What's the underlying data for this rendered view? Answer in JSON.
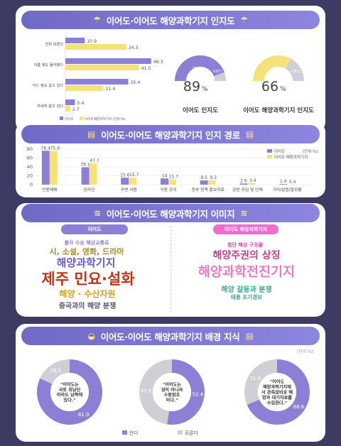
{
  "sections": {
    "s1_title": "이어도·이어도 해양과학기지 인지도",
    "s2_title": "이어도·이어도 해양과학기지 인지 경로",
    "s3_title": "이어도·이어도 해양과학기지 이미지",
    "s4_title": "이어도·이어도 해양과학기지 배경 지식"
  },
  "colors": {
    "ieodo": "#8b80d6",
    "station": "#f6e27a",
    "gray": "#cfcfd6"
  },
  "awareness": {
    "categories": [
      "전혀 모른다",
      "이름 정도 들어봤다",
      "어느 정도 알고 있다",
      "자세히 알고 있다"
    ],
    "legend": [
      "이어도",
      "이어도해양과학기지 (단위:%)"
    ],
    "series": [
      {
        "name": "이어도",
        "values": [
          10.9,
          48.3,
          35.4,
          5.4
        ]
      },
      {
        "name": "이어도해양과학기지",
        "values": [
          34.3,
          41.5,
          21.4,
          2.7
        ]
      }
    ],
    "gauges": [
      {
        "inner": "\"안다\"",
        "side": "모른다",
        "value": "89",
        "unit": "%",
        "label": "이어도 인지도",
        "pct": 89
      },
      {
        "inner": "\"안다\"",
        "side": "모른다",
        "value": "66",
        "unit": "%",
        "label": "이어도 해양과학기지 인지도",
        "pct": 66
      }
    ]
  },
  "chart_data": [
    {
      "type": "bar",
      "categories": [
        "전혀 모른다",
        "이름 정도 들어봤다",
        "어느 정도 알고 있다",
        "자세히 알고 있다"
      ],
      "series": [
        {
          "name": "이어도",
          "values": [
            10.9,
            48.3,
            35.4,
            5.4
          ]
        },
        {
          "name": "이어도해양과학기지",
          "values": [
            34.3,
            41.5,
            21.4,
            2.7
          ]
        }
      ],
      "orientation": "horizontal"
    },
    {
      "type": "bar",
      "categories": [
        "언론매체",
        "온라인",
        "주변 사람",
        "각종 강의",
        "정부 정책 홍보자료",
        "관련 모임 및 단체",
        "기타/없음/잘모름"
      ],
      "series": [
        {
          "name": "이어도",
          "values": [
            76.4,
            39.1,
            15.6,
            14,
            9.5,
            2.6,
            1.4
          ]
        },
        {
          "name": "이어도 해양과학기지",
          "values": [
            75.9,
            47.7,
            15.7,
            11.7,
            9.3,
            3.4,
            0.4
          ]
        }
      ],
      "ylim": [
        0,
        80
      ],
      "yticks": [
        0,
        20,
        40,
        60,
        80
      ],
      "legend": [
        "이어도",
        "이어도 해양과학기지"
      ],
      "unit": "(단위:%)"
    },
    {
      "type": "pie",
      "slices": [
        {
          "label": "안다",
          "value": 81.9
        },
        {
          "label": "모른다",
          "value": 18.1
        }
      ]
    },
    {
      "type": "pie",
      "slices": [
        {
          "label": "안다",
          "value": 52.4
        },
        {
          "label": "모른다",
          "value": 47.6
        }
      ]
    },
    {
      "type": "pie",
      "slices": [
        {
          "label": "안다",
          "value": 68.6
        },
        {
          "label": "모른다",
          "value": 31.4
        }
      ]
    }
  ],
  "route": {
    "categories": [
      "언론매체",
      "온라인",
      "주변 사람",
      "각종 강의",
      "정부 정책 홍보자료",
      "관련 모임 및 단체",
      "기타/없음/잘모름"
    ],
    "s1": [
      76.4,
      39.1,
      15.6,
      14,
      9.5,
      2.6,
      1.4
    ],
    "s2": [
      75.9,
      47.7,
      15.7,
      11.7,
      9.3,
      3.4,
      0.4
    ],
    "s1_labels": [
      "76.4",
      "39.1",
      "15.6",
      "14",
      "9.5",
      "2.6",
      "1.4"
    ],
    "s2_labels": [
      "75.9",
      "47.7",
      "15.7",
      "11.7",
      "9.3",
      "3.4",
      "0.4"
    ],
    "yticks": [
      "80",
      "60",
      "40",
      "20",
      "0"
    ],
    "legend": [
      "이어도",
      "이어도 해양과학기지"
    ],
    "unit": "(단위:%)"
  },
  "image": {
    "left_tag": "이어도",
    "left_words": [
      "불자 수송 해상교통로",
      "시, 소설, 영화, 드라마",
      "해양과학기지",
      "제주 민요·설화",
      "해양 · 수산자원",
      "중국과의 해양 분쟁"
    ],
    "right_tag": "이어도 해양과학기지",
    "right_words": [
      "첨단 해상 구조물",
      "해양주권의 상징",
      "해양과학전진기지",
      "해양 갈등과 분쟁",
      "태풍 조기경보"
    ]
  },
  "background": {
    "unit": "(단위:%)",
    "pies": [
      {
        "text": "\"이어도는\n국토 최남단\n마라도 남쪽에\n있다.\"",
        "know": "81.9",
        "dont": "18.1",
        "pct": 81.9
      },
      {
        "text": "\"이어도는\n섬이 아니라\n수중암초\n이다.\"",
        "know": "52.4",
        "dont": "47.6",
        "pct": 52.4
      },
      {
        "text": "\"이어도\n해양과학기지에\n서 관측장비로 해\n양과 대기자료를\n수집한다.\"",
        "know": "68.6",
        "dont": "31.4",
        "pct": 68.6
      }
    ],
    "legend": [
      "안다",
      "모른다"
    ]
  }
}
